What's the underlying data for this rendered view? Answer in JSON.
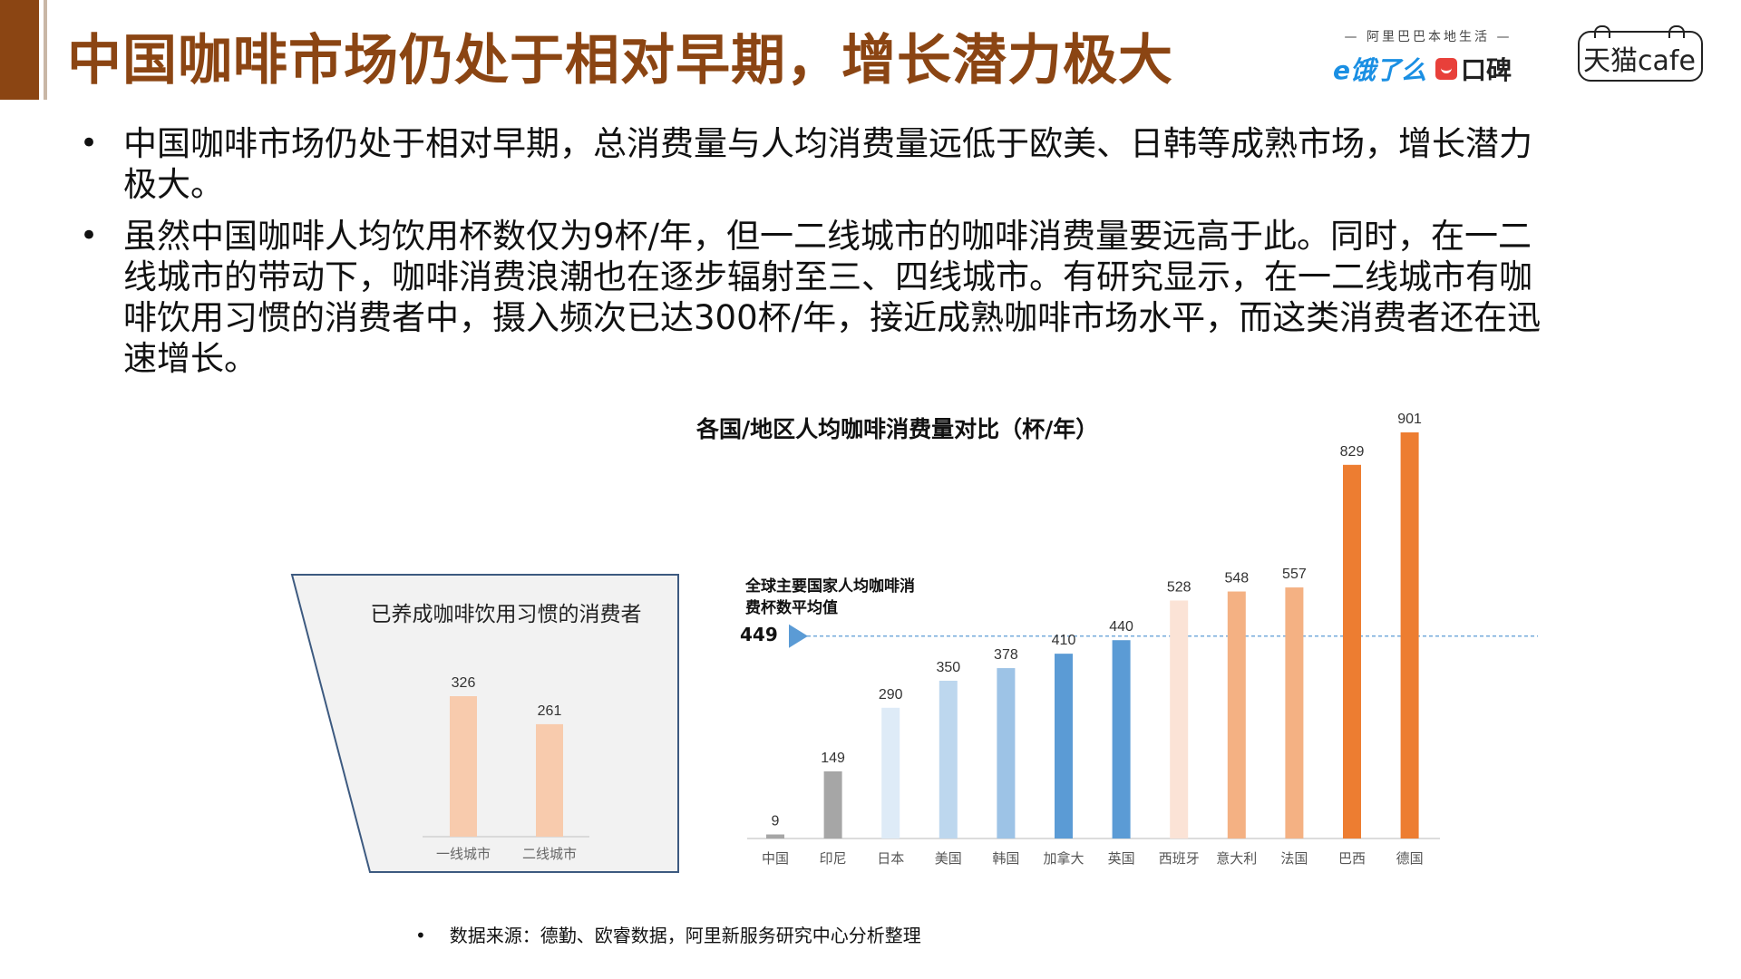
{
  "title": "中国咖啡市场仍处于相对早期，增长潜力极大",
  "logos": {
    "alibaba_local": "阿里巴巴本地生活",
    "eleme": "饿了么",
    "koubei": "口碑",
    "tmall": "天猫cafe"
  },
  "bullets": [
    "中国咖啡市场仍处于相对早期，总消费量与人均消费量远低于欧美、日韩等成熟市场，增长潜力极大。",
    "虽然中国咖啡人均饮用杯数仅为9杯/年，但一二线城市的咖啡消费量要远高于此。同时，在一二线城市的带动下，咖啡消费浪潮也在逐步辐射至三、四线城市。有研究显示，在一二线城市有咖啡饮用习惯的消费者中，摄入频次已达300杯/年，接近成熟咖啡市场水平，而这类消费者还在迅速增长。"
  ],
  "source_note": "数据来源：德勤、欧睿数据，阿里新服务研究中心分析整理",
  "chart_data": [
    {
      "type": "bar",
      "title": "各国/地区人均咖啡消费量对比（杯/年）",
      "categories": [
        "中国",
        "印尼",
        "日本",
        "美国",
        "韩国",
        "加拿大",
        "英国",
        "西班牙",
        "意大利",
        "法国",
        "巴西",
        "德国"
      ],
      "values": [
        9,
        149,
        290,
        350,
        378,
        410,
        440,
        528,
        548,
        557,
        829,
        901
      ],
      "colors": [
        "#a6a6a6",
        "#a6a6a6",
        "#deebf7",
        "#bdd7ee",
        "#9dc3e6",
        "#5b9bd5",
        "#5b9bd5",
        "#fbe3d6",
        "#f4b183",
        "#f4b183",
        "#ed7d31",
        "#ed7d31"
      ],
      "ylim": [
        0,
        901
      ],
      "reference_line": {
        "label": "全球主要国家人均咖啡消费杯数平均值",
        "value": 449,
        "color": "#5b9bd5"
      },
      "grid": false
    },
    {
      "type": "bar",
      "title": "已养成咖啡饮用习惯的消费者",
      "categories": [
        "一线城市",
        "二线城市"
      ],
      "values": [
        326,
        261
      ],
      "colors": [
        "#f8cbad",
        "#f8cbad"
      ],
      "ylim": [
        0,
        326
      ],
      "grid": false
    }
  ]
}
